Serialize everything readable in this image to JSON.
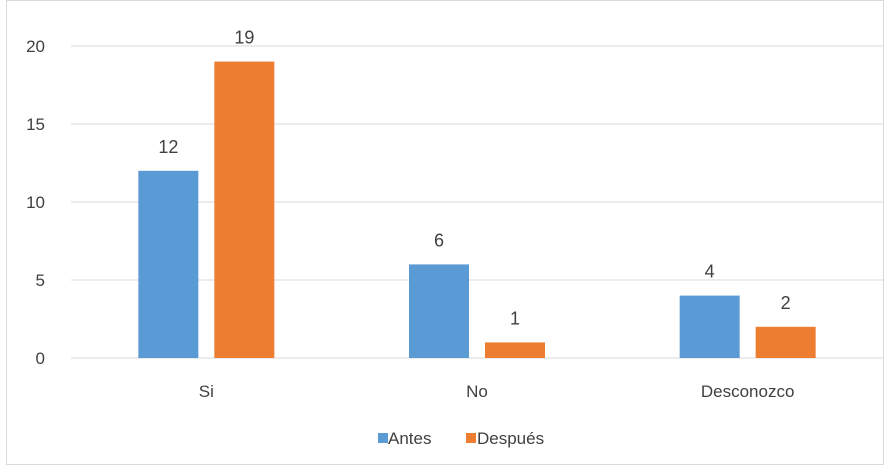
{
  "chart_data": {
    "type": "bar",
    "title": "",
    "xlabel": "",
    "ylabel": "",
    "categories": [
      "Si",
      "No",
      "Desconozco"
    ],
    "series": [
      {
        "name": "Antes",
        "values": [
          12,
          6,
          4
        ],
        "color": "#5b9bd5"
      },
      {
        "name": "Después",
        "values": [
          19,
          1,
          2
        ],
        "color": "#ed7d31"
      }
    ],
    "ylim": [
      0,
      20
    ],
    "yticks": [
      0,
      5,
      10,
      15,
      20
    ],
    "grid": true,
    "legend_position": "bottom",
    "data_labels": true
  }
}
